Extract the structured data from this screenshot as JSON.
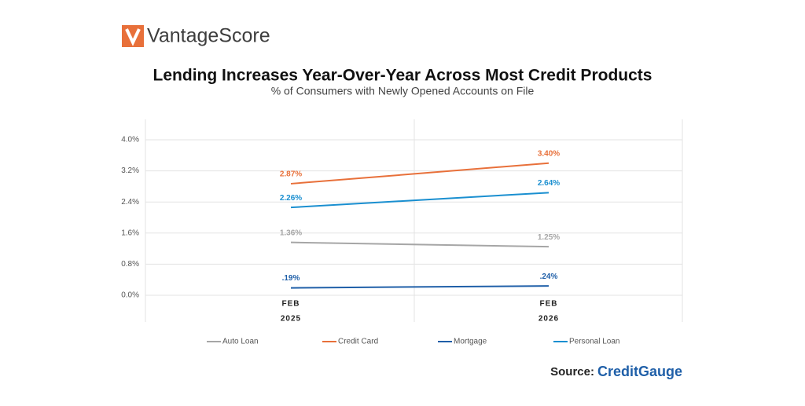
{
  "logo": "VantageScore",
  "chart_data": {
    "type": "line",
    "title": "Lending Increases Year-Over-Year Across Most Credit Products",
    "subtitle": "% of Consumers with Newly Opened Accounts on File",
    "categories": [
      [
        "FEB",
        "2025"
      ],
      [
        "FEB",
        "2026"
      ]
    ],
    "ylim": [
      0,
      4
    ],
    "yticks": [
      {
        "value": 0,
        "label": "0.0%"
      },
      {
        "value": 0.8,
        "label": "0.8%"
      },
      {
        "value": 1.6,
        "label": "1.6%"
      },
      {
        "value": 2.4,
        "label": "2.4%"
      },
      {
        "value": 3.2,
        "label": "3.2%"
      },
      {
        "value": 4,
        "label": "4.0%"
      }
    ],
    "grid": true,
    "series": [
      {
        "name": "Auto Loan",
        "color": "#a6a6a6",
        "values": [
          1.36,
          1.25
        ],
        "value_labels": [
          "1.36%",
          "1.25%"
        ]
      },
      {
        "name": "Credit Card",
        "color": "#e8703a",
        "values": [
          2.87,
          3.4
        ],
        "value_labels": [
          "2.87%",
          "3.40%"
        ]
      },
      {
        "name": "Mortgage",
        "color": "#1f5fa8",
        "values": [
          0.19,
          0.24
        ],
        "value_labels": [
          ".19%",
          ".24%"
        ]
      },
      {
        "name": "Personal Loan",
        "color": "#1a8fd0",
        "values": [
          2.26,
          2.64
        ],
        "value_labels": [
          "2.26%",
          "2.64%"
        ]
      }
    ]
  },
  "source_label": "Source:",
  "source_name": "CreditGauge"
}
